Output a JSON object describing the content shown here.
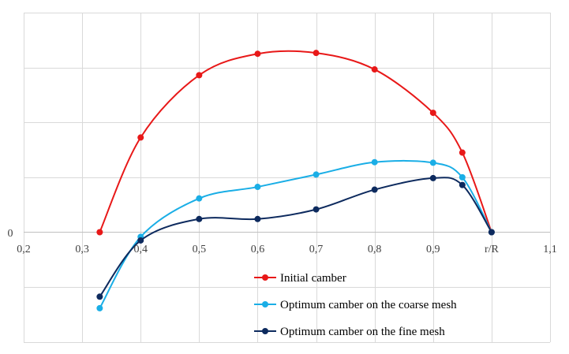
{
  "chart_data": {
    "type": "line",
    "smooth": true,
    "x_axis": {
      "min": 0.2,
      "max": 1.1,
      "ticks": [
        0.2,
        0.3,
        0.4,
        0.5,
        0.6,
        0.7,
        0.8,
        0.9,
        1.0,
        1.1
      ],
      "tick_labels": [
        "0,2",
        "0,3",
        "0,4",
        "0,5",
        "0,6",
        "0,7",
        "0,8",
        "0,9",
        "r/R",
        "1,1"
      ]
    },
    "y_axis": {
      "min": -0.4,
      "max": 0.8,
      "gridlines": [
        0.2,
        0.4,
        0.6,
        0.8,
        -0.4,
        -0.2
      ],
      "zero_label": "0"
    },
    "grid": true,
    "legend_position": "bottom-center",
    "series": [
      {
        "name": "Initial camber",
        "color": "#e81818",
        "x": [
          0.33,
          0.4,
          0.5,
          0.6,
          0.7,
          0.8,
          0.9,
          0.95,
          1.0
        ],
        "y": [
          0.0,
          0.345,
          0.572,
          0.65,
          0.653,
          0.593,
          0.435,
          0.29,
          0.0
        ]
      },
      {
        "name": "Optimum camber on the coarse mesh",
        "color": "#1aaee6",
        "x": [
          0.33,
          0.4,
          0.5,
          0.6,
          0.7,
          0.8,
          0.9,
          0.95,
          1.0
        ],
        "y": [
          -0.277,
          -0.017,
          0.123,
          0.165,
          0.21,
          0.255,
          0.253,
          0.2,
          0.0
        ]
      },
      {
        "name": "Optimum camber on the fine mesh",
        "color": "#0d2a5e",
        "x": [
          0.33,
          0.4,
          0.5,
          0.6,
          0.7,
          0.8,
          0.9,
          0.95,
          1.0
        ],
        "y": [
          -0.235,
          -0.03,
          0.048,
          0.048,
          0.083,
          0.155,
          0.197,
          0.172,
          0.0
        ]
      }
    ]
  }
}
